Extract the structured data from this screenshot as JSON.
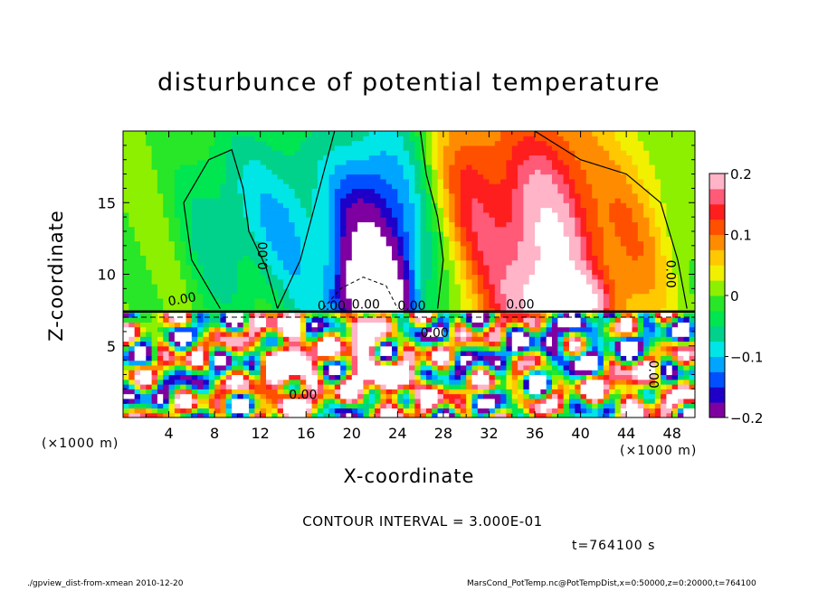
{
  "chart_data": {
    "type": "heatmap",
    "title": "disturbunce of potential temperature",
    "xlabel": "X-coordinate",
    "ylabel": "Z-coordinate",
    "x_unit": "(×1000 m)",
    "y_unit": "",
    "xlim": [
      0,
      50
    ],
    "ylim": [
      0,
      20
    ],
    "x_ticks": [
      "4",
      "8",
      "12",
      "16",
      "20",
      "24",
      "28",
      "32",
      "36",
      "40",
      "44",
      "48"
    ],
    "y_ticks": [
      "5",
      "10",
      "15"
    ],
    "colorbar": {
      "range": [
        -0.2,
        0.2
      ],
      "tick_labels": [
        "0.2",
        "0.1",
        "0",
        "−0.1",
        "−0.2"
      ],
      "colors": [
        "#7f00a0",
        "#1e00c8",
        "#0050ff",
        "#00a5ff",
        "#00e6e6",
        "#00d28c",
        "#00e650",
        "#28e628",
        "#8cf000",
        "#f0f000",
        "#ffc800",
        "#ff8c00",
        "#ff5000",
        "#ff1e1e",
        "#ff5a78",
        "#ffb4c8"
      ]
    },
    "contour_labels": [
      "0.00",
      "0.00",
      "0.00",
      "0.00",
      "0.00",
      "0.00",
      "0.00",
      "0.00",
      "0.00",
      "0.00"
    ],
    "annotations": {
      "contour_interval": "CONTOUR INTERVAL = 3.000E-01",
      "time": "t=764100 s"
    }
  },
  "footer": {
    "left": "./gpview_dist-from-xmean  2010-12-20",
    "right": "MarsCond_PotTemp.nc@PotTempDist,x=0:50000,z=0:20000,t=764100"
  }
}
